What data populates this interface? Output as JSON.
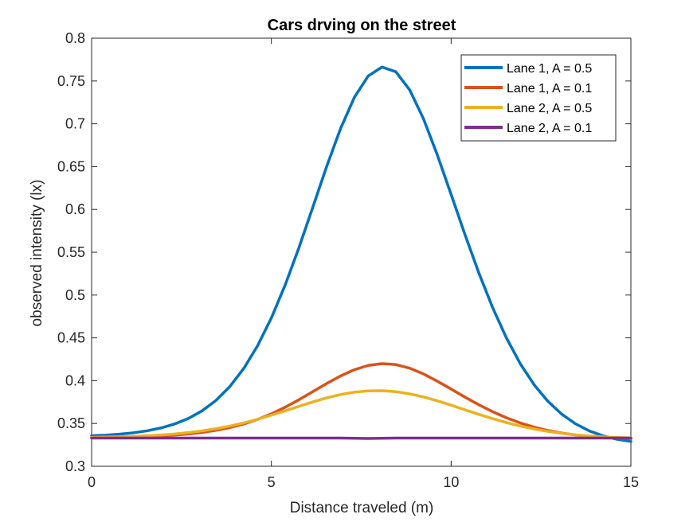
{
  "chart_data": {
    "type": "line",
    "title": "Cars drving on the street",
    "xlabel": "Distance traveled (m)",
    "ylabel": "observed intensity (lx)",
    "xlim": [
      0,
      15
    ],
    "ylim": [
      0.3,
      0.8
    ],
    "xticks": [
      0,
      5,
      10,
      15
    ],
    "yticks": [
      0.3,
      0.35,
      0.4,
      0.45,
      0.5,
      0.55,
      0.6,
      0.65,
      0.7,
      0.75,
      0.8
    ],
    "grid": false,
    "legend_position": "top-right",
    "x": [
      0,
      0.3846,
      0.7692,
      1.1538,
      1.5385,
      1.9231,
      2.3077,
      2.6923,
      3.0769,
      3.4615,
      3.8462,
      4.2308,
      4.6154,
      5.0,
      5.3846,
      5.7692,
      6.1538,
      6.5385,
      6.9231,
      7.3077,
      7.6923,
      8.0769,
      8.4615,
      8.8462,
      9.2308,
      9.6154,
      10.0,
      10.3846,
      10.7692,
      11.1538,
      11.5385,
      11.9231,
      12.3077,
      12.6923,
      13.0769,
      13.4615,
      13.8462,
      14.2308,
      14.6154,
      15.0
    ],
    "series": [
      {
        "name": "Lane 1, A = 0.5",
        "color": "#0072BD",
        "values": [
          0.3357,
          0.3364,
          0.3375,
          0.3391,
          0.3414,
          0.3447,
          0.3494,
          0.3559,
          0.3649,
          0.377,
          0.3932,
          0.4142,
          0.4407,
          0.4733,
          0.5118,
          0.5556,
          0.6027,
          0.6502,
          0.6943,
          0.7308,
          0.7558,
          0.7663,
          0.7608,
          0.7397,
          0.7059,
          0.6637,
          0.6175,
          0.5707,
          0.526,
          0.4854,
          0.4499,
          0.4198,
          0.3953,
          0.3759,
          0.3609,
          0.3496,
          0.3413,
          0.3355,
          0.3316,
          0.329
        ]
      },
      {
        "name": "Lane 1, A = 0.1",
        "color": "#D95319",
        "values": [
          0.3338,
          0.334,
          0.3342,
          0.3345,
          0.3349,
          0.3356,
          0.3365,
          0.3378,
          0.3396,
          0.342,
          0.3452,
          0.3494,
          0.3547,
          0.3612,
          0.369,
          0.3778,
          0.3872,
          0.3967,
          0.4055,
          0.4128,
          0.4178,
          0.4199,
          0.4188,
          0.4146,
          0.4079,
          0.3994,
          0.3902,
          0.3808,
          0.3719,
          0.3638,
          0.3567,
          0.3506,
          0.3457,
          0.3418,
          0.3388,
          0.3366,
          0.3349,
          0.3337,
          0.3329,
          0.3324
        ]
      },
      {
        "name": "Lane 2, A = 0.5",
        "color": "#EDB120",
        "values": [
          0.3338,
          0.3341,
          0.3345,
          0.335,
          0.3357,
          0.3366,
          0.3378,
          0.3394,
          0.3414,
          0.3439,
          0.347,
          0.3507,
          0.3549,
          0.3597,
          0.3648,
          0.3701,
          0.3752,
          0.3799,
          0.3838,
          0.3866,
          0.3881,
          0.3883,
          0.3871,
          0.3846,
          0.381,
          0.3765,
          0.3714,
          0.366,
          0.3607,
          0.3557,
          0.3511,
          0.347,
          0.3436,
          0.3408,
          0.3385,
          0.3367,
          0.3354,
          0.3344,
          0.3337,
          0.3332
        ]
      },
      {
        "name": "Lane 2, A = 0.1",
        "color": "#7E2F8E",
        "values": [
          0.333,
          0.333,
          0.333,
          0.333,
          0.333,
          0.333,
          0.333,
          0.333,
          0.333,
          0.333,
          0.333,
          0.333,
          0.333,
          0.333,
          0.333,
          0.333,
          0.333,
          0.333,
          0.333,
          0.3328,
          0.3325,
          0.3328,
          0.333,
          0.333,
          0.333,
          0.333,
          0.333,
          0.333,
          0.333,
          0.333,
          0.333,
          0.333,
          0.333,
          0.333,
          0.333,
          0.333,
          0.333,
          0.333,
          0.333,
          0.333
        ]
      }
    ]
  }
}
